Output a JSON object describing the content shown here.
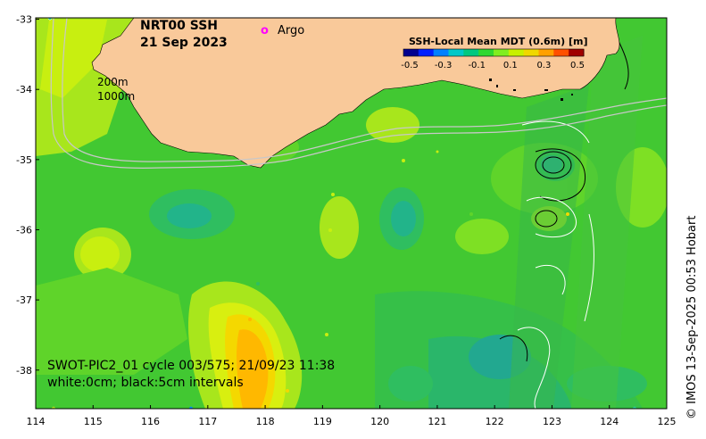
{
  "title": {
    "line1": "NRT00 SSH",
    "line2": "21 Sep 2023"
  },
  "legend": {
    "argo_symbol": "o",
    "argo_label": "Argo",
    "argo_color": "#ff00ff"
  },
  "contour_labels": {
    "shelf200": "200m",
    "shelf1000": "1000m"
  },
  "colorbar": {
    "title": "SSH-Local Mean MDT (0.6m) [m]",
    "tick_labels": [
      "-0.5",
      "-0.3",
      "-0.1",
      "0.1",
      "0.3",
      "0.5"
    ],
    "colors": [
      "#00008f",
      "#0020ff",
      "#0080ff",
      "#00c8c8",
      "#00c880",
      "#30d830",
      "#80ee20",
      "#c8f000",
      "#f0d800",
      "#ffa000",
      "#ff5000",
      "#a00000"
    ]
  },
  "swot": {
    "line1": "SWOT-PIC2_01 cycle 003/575; 21/09/23 11:38",
    "line2": "white:0cm; black:5cm intervals"
  },
  "credit": "© IMOS 13-Sep-2025 00:53 Hobart",
  "axes": {
    "x_ticks": [
      "114",
      "115",
      "116",
      "117",
      "118",
      "119",
      "120",
      "121",
      "122",
      "123",
      "124",
      "125"
    ],
    "y_ticks": [
      "-33",
      "-34",
      "-35",
      "-36",
      "-37",
      "-38"
    ],
    "x_range": [
      114,
      125
    ],
    "y_range": [
      -38.55,
      -32.98
    ]
  },
  "colors": {
    "land": "#f9c99a",
    "ocean_base": "#40c830"
  }
}
